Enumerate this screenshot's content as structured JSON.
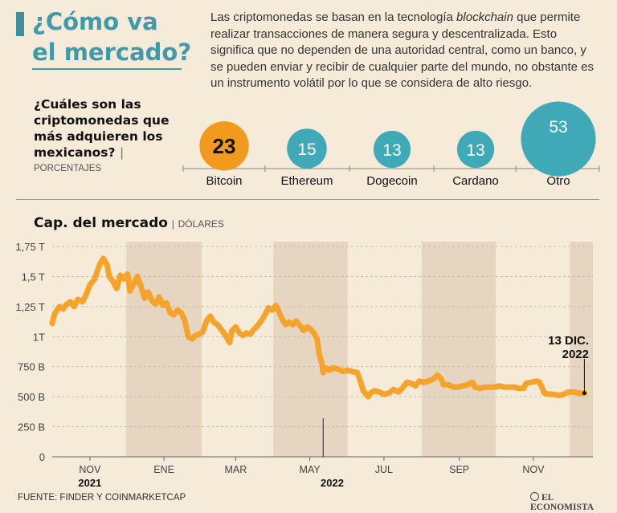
{
  "header": {
    "title_line1": "¿Cómo va",
    "title_line2": "el mercado?",
    "intro_before": "Las criptomonedas se basan en la tecnología ",
    "intro_emphasis": "blockchain",
    "intro_after": " que permite realizar transacciones de manera segura y descentralizada. Esto significa que no dependen de una autoridad central, como un banco, y se pueden enviar y recibir de cualquier parte del mundo, no obstante es un instrumento volátil por lo que se considera de alto riesgo."
  },
  "bubbles_section": {
    "question": "¿Cuáles son las criptomonedas que más adquieren los mexicanos?",
    "separator": "|",
    "unit": "PORCENTAJES"
  },
  "line_section": {
    "title": "Cap. del mercado",
    "separator": "|",
    "unit": "DÓLARES",
    "annotation_line1": "13 DIC.",
    "annotation_line2": "2022"
  },
  "footer": {
    "source": "FUENTE: FINDER Y COINMARKETCAP",
    "logo": "EL ECONOMISTA"
  },
  "colors": {
    "accent": "#3f9aaa",
    "bubble_highlight": "#f19a1d",
    "bubble_other": "#3fa9b7",
    "line": "#f5a32a",
    "band": "#e6d6c1"
  },
  "chart_data": [
    {
      "type": "bubble",
      "categories": [
        "Bitcoin",
        "Ethereum",
        "Dogecoin",
        "Cardano",
        "Otro"
      ],
      "values": [
        23,
        15,
        13,
        13,
        53
      ],
      "unit": "PORCENTAJES",
      "highlight": "Bitcoin"
    },
    {
      "type": "line",
      "title": "Cap. del mercado",
      "ylabel": "DÓLARES",
      "y_unit": "trillion USD",
      "ylim": [
        0,
        1.75
      ],
      "yticks": [
        0,
        0.25,
        0.5,
        0.75,
        1,
        1.25,
        1.5,
        1.75
      ],
      "ytick_labels": [
        "0",
        "250 B",
        "500 B",
        "750 B",
        "1T",
        "1,25 T",
        "1,5 T",
        "1,75 T"
      ],
      "xlim": [
        "2021-10-01",
        "2022-12-20"
      ],
      "xtick_dates": [
        "2021-11-01",
        "2022-01-01",
        "2022-03-01",
        "2022-05-01",
        "2022-07-01",
        "2022-09-01",
        "2022-11-01"
      ],
      "xtick_labels": [
        "NOV",
        "ENE",
        "MAR",
        "MAY",
        "JUL",
        "SEP",
        "NOV"
      ],
      "year_labels": [
        {
          "date": "2021-11-01",
          "label": "2021"
        },
        {
          "date": "2022-01-01",
          "label": "2022"
        }
      ],
      "marker_date": "2022-05-12",
      "grid": false,
      "series": [
        {
          "points": [
            [
              "2021-10-01",
              1.11
            ],
            [
              "2021-10-03",
              1.19
            ],
            [
              "2021-10-07",
              1.25
            ],
            [
              "2021-10-10",
              1.23
            ],
            [
              "2021-10-13",
              1.27
            ],
            [
              "2021-10-16",
              1.29
            ],
            [
              "2021-10-19",
              1.25
            ],
            [
              "2021-10-22",
              1.31
            ],
            [
              "2021-10-26",
              1.29
            ],
            [
              "2021-10-29",
              1.35
            ],
            [
              "2021-11-01",
              1.43
            ],
            [
              "2021-11-05",
              1.48
            ],
            [
              "2021-11-09",
              1.6
            ],
            [
              "2021-11-12",
              1.65
            ],
            [
              "2021-11-15",
              1.6
            ],
            [
              "2021-11-17",
              1.5
            ],
            [
              "2021-11-20",
              1.46
            ],
            [
              "2021-11-23",
              1.4
            ],
            [
              "2021-11-26",
              1.51
            ],
            [
              "2021-11-29",
              1.48
            ],
            [
              "2021-12-02",
              1.52
            ],
            [
              "2021-12-04",
              1.38
            ],
            [
              "2021-12-07",
              1.44
            ],
            [
              "2021-12-10",
              1.5
            ],
            [
              "2021-12-13",
              1.42
            ],
            [
              "2021-12-16",
              1.32
            ],
            [
              "2021-12-19",
              1.37
            ],
            [
              "2021-12-22",
              1.3
            ],
            [
              "2021-12-25",
              1.27
            ],
            [
              "2021-12-28",
              1.33
            ],
            [
              "2021-12-31",
              1.26
            ],
            [
              "2022-01-03",
              1.28
            ],
            [
              "2022-01-06",
              1.2
            ],
            [
              "2022-01-09",
              1.18
            ],
            [
              "2022-01-12",
              1.22
            ],
            [
              "2022-01-15",
              1.2
            ],
            [
              "2022-01-18",
              1.14
            ],
            [
              "2022-01-21",
              1.0
            ],
            [
              "2022-01-24",
              0.98
            ],
            [
              "2022-01-27",
              1.01
            ],
            [
              "2022-01-30",
              1.02
            ],
            [
              "2022-02-02",
              1.04
            ],
            [
              "2022-02-05",
              1.13
            ],
            [
              "2022-02-08",
              1.17
            ],
            [
              "2022-02-11",
              1.12
            ],
            [
              "2022-02-14",
              1.1
            ],
            [
              "2022-02-17",
              1.06
            ],
            [
              "2022-02-20",
              1.02
            ],
            [
              "2022-02-24",
              0.95
            ],
            [
              "2022-02-26",
              1.05
            ],
            [
              "2022-03-01",
              1.08
            ],
            [
              "2022-03-04",
              1.03
            ],
            [
              "2022-03-07",
              1.01
            ],
            [
              "2022-03-10",
              1.03
            ],
            [
              "2022-03-13",
              1.02
            ],
            [
              "2022-03-16",
              1.06
            ],
            [
              "2022-03-19",
              1.09
            ],
            [
              "2022-03-22",
              1.13
            ],
            [
              "2022-03-25",
              1.18
            ],
            [
              "2022-03-28",
              1.24
            ],
            [
              "2022-03-31",
              1.22
            ],
            [
              "2022-04-03",
              1.26
            ],
            [
              "2022-04-05",
              1.22
            ],
            [
              "2022-04-08",
              1.15
            ],
            [
              "2022-04-11",
              1.1
            ],
            [
              "2022-04-14",
              1.12
            ],
            [
              "2022-04-17",
              1.1
            ],
            [
              "2022-04-20",
              1.13
            ],
            [
              "2022-04-23",
              1.09
            ],
            [
              "2022-04-26",
              1.05
            ],
            [
              "2022-04-29",
              1.08
            ],
            [
              "2022-05-02",
              1.06
            ],
            [
              "2022-05-05",
              1.02
            ],
            [
              "2022-05-07",
              0.98
            ],
            [
              "2022-05-09",
              0.84
            ],
            [
              "2022-05-11",
              0.78
            ],
            [
              "2022-05-12",
              0.7
            ],
            [
              "2022-05-14",
              0.74
            ],
            [
              "2022-05-17",
              0.72
            ],
            [
              "2022-05-20",
              0.74
            ],
            [
              "2022-05-24",
              0.73
            ],
            [
              "2022-05-28",
              0.71
            ],
            [
              "2022-06-01",
              0.72
            ],
            [
              "2022-06-05",
              0.71
            ],
            [
              "2022-06-09",
              0.7
            ],
            [
              "2022-06-12",
              0.62
            ],
            [
              "2022-06-14",
              0.55
            ],
            [
              "2022-06-18",
              0.5
            ],
            [
              "2022-06-20",
              0.53
            ],
            [
              "2022-06-23",
              0.55
            ],
            [
              "2022-06-27",
              0.54
            ],
            [
              "2022-07-01",
              0.52
            ],
            [
              "2022-07-05",
              0.53
            ],
            [
              "2022-07-09",
              0.56
            ],
            [
              "2022-07-13",
              0.54
            ],
            [
              "2022-07-16",
              0.57
            ],
            [
              "2022-07-20",
              0.62
            ],
            [
              "2022-07-24",
              0.61
            ],
            [
              "2022-07-27",
              0.59
            ],
            [
              "2022-07-30",
              0.63
            ],
            [
              "2022-08-03",
              0.62
            ],
            [
              "2022-08-07",
              0.63
            ],
            [
              "2022-08-11",
              0.65
            ],
            [
              "2022-08-14",
              0.68
            ],
            [
              "2022-08-17",
              0.65
            ],
            [
              "2022-08-19",
              0.6
            ],
            [
              "2022-08-23",
              0.6
            ],
            [
              "2022-08-27",
              0.58
            ],
            [
              "2022-08-31",
              0.58
            ],
            [
              "2022-09-04",
              0.59
            ],
            [
              "2022-09-08",
              0.6
            ],
            [
              "2022-09-12",
              0.62
            ],
            [
              "2022-09-14",
              0.58
            ],
            [
              "2022-09-18",
              0.57
            ],
            [
              "2022-09-22",
              0.58
            ],
            [
              "2022-09-26",
              0.58
            ],
            [
              "2022-09-30",
              0.58
            ],
            [
              "2022-10-04",
              0.59
            ],
            [
              "2022-10-08",
              0.58
            ],
            [
              "2022-10-12",
              0.58
            ],
            [
              "2022-10-16",
              0.58
            ],
            [
              "2022-10-20",
              0.57
            ],
            [
              "2022-10-24",
              0.57
            ],
            [
              "2022-10-26",
              0.61
            ],
            [
              "2022-10-30",
              0.62
            ],
            [
              "2022-11-04",
              0.63
            ],
            [
              "2022-11-06",
              0.62
            ],
            [
              "2022-11-08",
              0.58
            ],
            [
              "2022-11-10",
              0.53
            ],
            [
              "2022-11-14",
              0.52
            ],
            [
              "2022-11-18",
              0.52
            ],
            [
              "2022-11-22",
              0.51
            ],
            [
              "2022-11-26",
              0.52
            ],
            [
              "2022-11-30",
              0.54
            ],
            [
              "2022-12-04",
              0.54
            ],
            [
              "2022-12-08",
              0.53
            ],
            [
              "2022-12-13",
              0.53
            ]
          ]
        }
      ]
    }
  ]
}
